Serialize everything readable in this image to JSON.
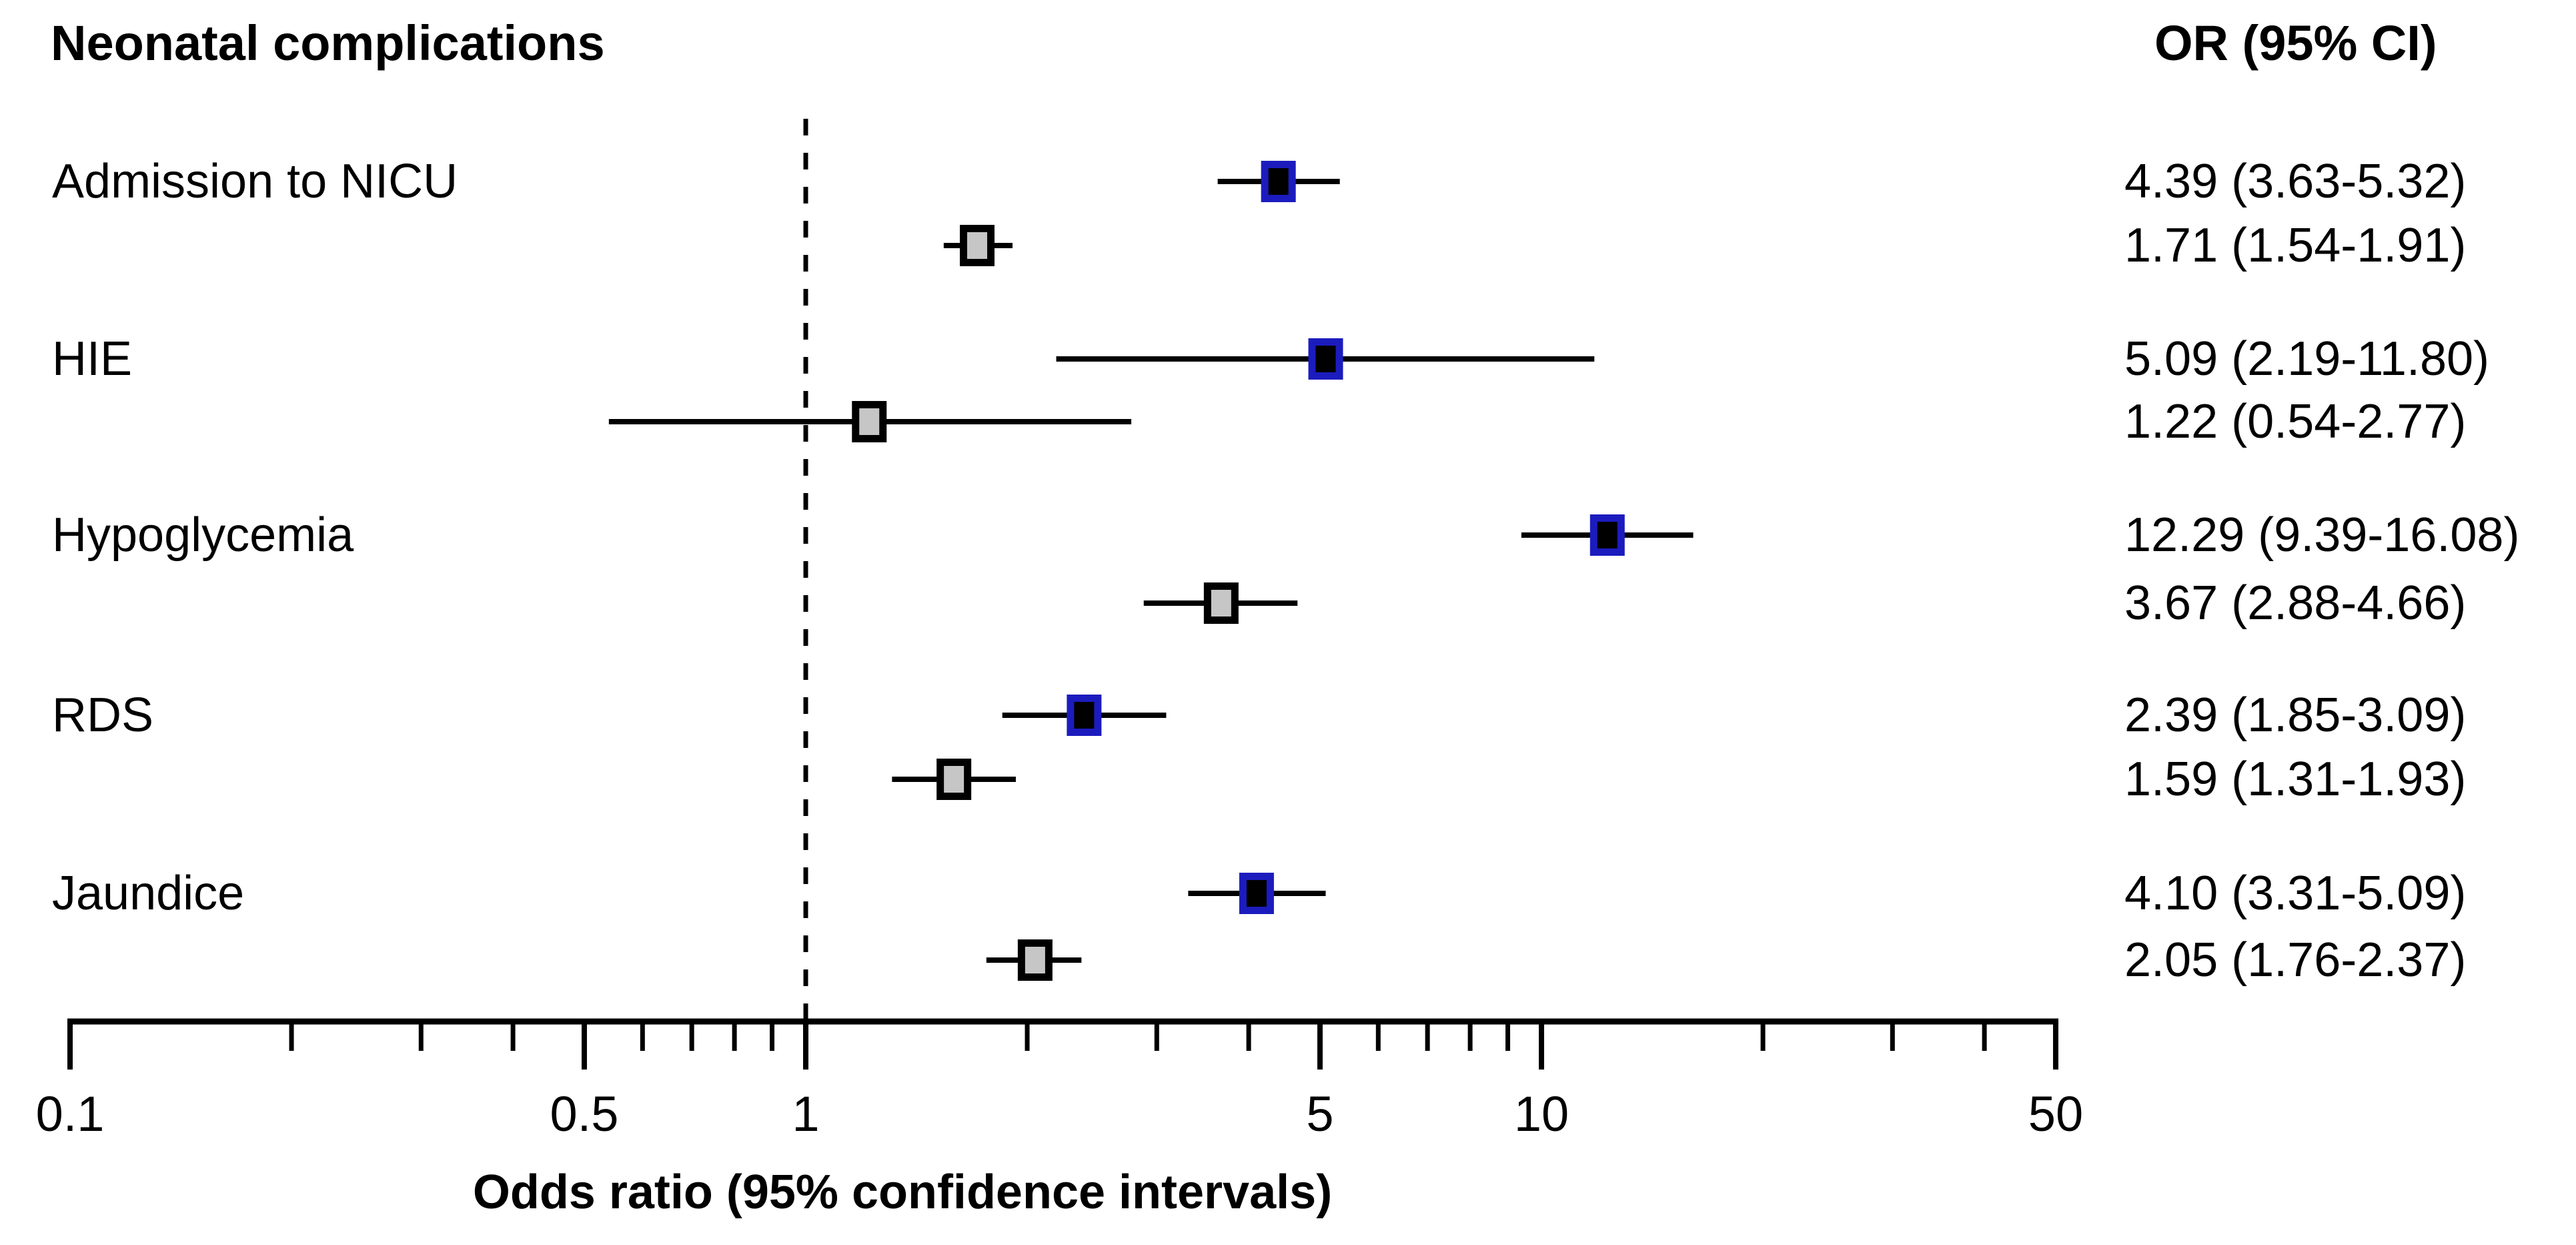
{
  "figure": {
    "title": "Neonatal complications",
    "or_column_header": "OR (95% CI)",
    "x_axis_title": "Odds ratio (95% confidence intervals)"
  },
  "chart_data": {
    "type": "scatter",
    "variant": "forest-plot",
    "title": "Neonatal complications",
    "or_column_header": "OR (95% CI)",
    "xlabel": "Odds ratio (95% confidence intervals)",
    "x_scale": "log10",
    "xlim": [
      0.1,
      50
    ],
    "reference_line_x": 1,
    "reference_line_style": "dashed",
    "grid": false,
    "legend": "none",
    "major_ticks": [
      0.1,
      0.5,
      1,
      5,
      10,
      50
    ],
    "major_tick_labels": [
      "0.1",
      "0.5",
      "1",
      "5",
      "10",
      "50"
    ],
    "minor_ticks": [
      0.2,
      0.3,
      0.4,
      0.6,
      0.7,
      0.8,
      0.9,
      2,
      3,
      4,
      6,
      7,
      8,
      9,
      20,
      30,
      40
    ],
    "series_styles": [
      {
        "name": "estimate-1-blue-marker",
        "marker_outline": "#1c1cbe",
        "marker_fill": "#000000"
      },
      {
        "name": "estimate-2-gray-marker",
        "marker_outline": "#000000",
        "marker_fill": "#c6c6c6"
      }
    ],
    "line_color": "#000000",
    "rows": [
      {
        "label": "Admission to NICU",
        "estimates": [
          {
            "or": 4.39,
            "ci_low": 3.63,
            "ci_high": 5.32,
            "display": "4.39 (3.63-5.32)"
          },
          {
            "or": 1.71,
            "ci_low": 1.54,
            "ci_high": 1.91,
            "display": "1.71 (1.54-1.91)"
          }
        ]
      },
      {
        "label": "HIE",
        "estimates": [
          {
            "or": 5.09,
            "ci_low": 2.19,
            "ci_high": 11.8,
            "display": "5.09 (2.19-11.80)"
          },
          {
            "or": 1.22,
            "ci_low": 0.54,
            "ci_high": 2.77,
            "display": "1.22 (0.54-2.77)"
          }
        ]
      },
      {
        "label": "Hypoglycemia",
        "estimates": [
          {
            "or": 12.29,
            "ci_low": 9.39,
            "ci_high": 16.08,
            "display": "12.29 (9.39-16.08)"
          },
          {
            "or": 3.67,
            "ci_low": 2.88,
            "ci_high": 4.66,
            "display": "3.67 (2.88-4.66)"
          }
        ]
      },
      {
        "label": "RDS",
        "estimates": [
          {
            "or": 2.39,
            "ci_low": 1.85,
            "ci_high": 3.09,
            "display": "2.39 (1.85-3.09)"
          },
          {
            "or": 1.59,
            "ci_low": 1.31,
            "ci_high": 1.93,
            "display": "1.59 (1.31-1.93)"
          }
        ]
      },
      {
        "label": "Jaundice",
        "estimates": [
          {
            "or": 4.1,
            "ci_low": 3.31,
            "ci_high": 5.09,
            "display": "4.10 (3.31-5.09)"
          },
          {
            "or": 2.05,
            "ci_low": 1.76,
            "ci_high": 2.37,
            "display": "2.05 (1.76-2.37)"
          }
        ]
      }
    ]
  }
}
